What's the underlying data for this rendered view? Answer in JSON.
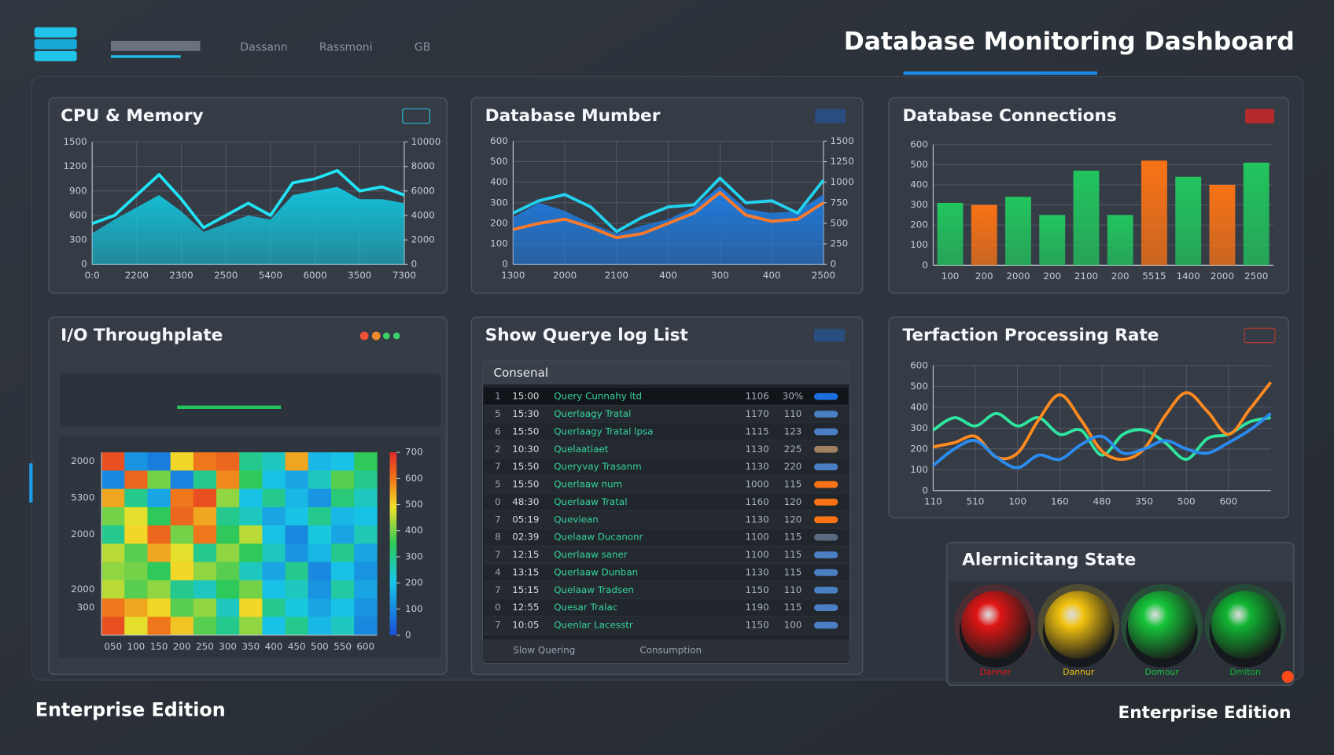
{
  "header": {
    "title": "Database Monitoring Dashboard",
    "nav": [
      "Dassann",
      "Rassmoni",
      "GB"
    ]
  },
  "footer": {
    "left": "Enterprise Edition",
    "right": "Enterprise Edition"
  },
  "chart_data": [
    {
      "type": "line",
      "title": "CPU & Memory",
      "grid": true,
      "categories": [
        "0:0",
        null,
        "2200",
        null,
        "2300",
        null,
        "2500",
        null,
        "5400",
        null,
        "6000",
        null,
        "3500",
        null,
        "7300"
      ],
      "series": [
        {
          "style": "area",
          "color": "#12c8e0",
          "values": [
            380,
            550,
            700,
            850,
            650,
            400,
            500,
            600,
            550,
            850,
            900,
            950,
            800,
            800,
            750
          ]
        },
        {
          "style": "line",
          "color": "#20e4f5",
          "values": [
            500,
            600,
            850,
            1100,
            800,
            450,
            600,
            750,
            600,
            1000,
            1050,
            1150,
            900,
            950,
            850
          ]
        }
      ],
      "ylim": [
        0,
        1500
      ],
      "yticks": [
        0,
        300,
        600,
        900,
        1200,
        1500
      ],
      "y2lim": [
        0,
        10000
      ],
      "y2ticks": [
        0,
        2000,
        4000,
        6000,
        8000,
        10000
      ]
    },
    {
      "type": "line",
      "title": "Database Mumber",
      "grid": true,
      "categories": [
        "1300",
        null,
        "2000",
        null,
        "2100",
        null,
        "400",
        null,
        "300",
        null,
        "400",
        null,
        "2500"
      ],
      "series": [
        {
          "style": "area",
          "color": "#1e7fe8",
          "values": [
            230,
            300,
            260,
            200,
            150,
            190,
            220,
            280,
            380,
            270,
            250,
            260,
            340
          ]
        },
        {
          "style": "line",
          "color": "#ff7a2a",
          "values": [
            170,
            200,
            220,
            180,
            130,
            150,
            200,
            250,
            350,
            240,
            210,
            220,
            300
          ]
        },
        {
          "style": "line",
          "color": "#22d3f0",
          "values": [
            250,
            310,
            340,
            280,
            160,
            230,
            280,
            290,
            420,
            300,
            310,
            250,
            410
          ]
        }
      ],
      "ylim": [
        0,
        600
      ],
      "yticks": [
        0,
        100,
        200,
        300,
        400,
        500,
        600
      ],
      "y2lim": [
        0,
        1500
      ],
      "y2ticks": [
        0,
        250,
        500,
        750,
        1000,
        1250,
        1500
      ]
    },
    {
      "type": "bar",
      "title": "Database Connections",
      "grid": true,
      "categories": [
        "100",
        "200",
        "2000",
        "200",
        "2100",
        "200",
        "5515",
        "1400",
        "2000",
        "2500"
      ],
      "values": [
        310,
        300,
        340,
        250,
        470,
        250,
        520,
        440,
        400,
        510
      ],
      "colors": [
        "#22c55e",
        "#f97316",
        "#22c55e",
        "#22c55e",
        "#22c55e",
        "#22c55e",
        "#f97316",
        "#22c55e",
        "#f97316",
        "#22c55e"
      ],
      "ylim": [
        0,
        600
      ],
      "yticks": [
        0,
        100,
        200,
        300,
        400,
        500,
        600
      ]
    },
    {
      "type": "heatmap",
      "title": "I/O Throughplate",
      "x": [
        "050",
        "100",
        "150",
        "200",
        "250",
        "300",
        "350",
        "400",
        "450",
        "500",
        "550",
        "600"
      ],
      "y": [
        "2000",
        null,
        "5300",
        null,
        "2000",
        null,
        null,
        "2000",
        "300",
        null
      ],
      "values": [
        [
          650,
          120,
          80,
          500,
          600,
          620,
          300,
          250,
          550,
          180,
          200,
          350
        ],
        [
          100,
          620,
          400,
          90,
          300,
          580,
          350,
          200,
          150,
          250,
          380,
          300
        ],
        [
          550,
          300,
          150,
          600,
          650,
          420,
          200,
          300,
          180,
          120,
          320,
          250
        ],
        [
          400,
          480,
          350,
          620,
          550,
          300,
          250,
          150,
          200,
          300,
          180,
          200
        ],
        [
          300,
          500,
          620,
          400,
          600,
          350,
          450,
          200,
          100,
          220,
          150,
          260
        ],
        [
          450,
          380,
          550,
          480,
          300,
          420,
          350,
          250,
          120,
          180,
          300,
          150
        ],
        [
          420,
          400,
          350,
          500,
          420,
          380,
          250,
          150,
          300,
          100,
          200,
          120
        ],
        [
          450,
          380,
          420,
          300,
          250,
          350,
          400,
          200,
          250,
          120,
          280,
          150
        ],
        [
          600,
          550,
          500,
          380,
          420,
          250,
          500,
          300,
          220,
          150,
          200,
          120
        ],
        [
          650,
          480,
          600,
          520,
          380,
          300,
          420,
          200,
          300,
          180,
          250,
          100
        ]
      ],
      "zlim": [
        0,
        700
      ],
      "zticks": [
        0,
        100,
        200,
        300,
        400,
        500,
        600,
        700
      ]
    },
    {
      "type": "line",
      "title": "Terfaction Processing Rate",
      "grid": true,
      "smooth": true,
      "categories": [
        "110",
        null,
        "510",
        null,
        "100",
        null,
        "160",
        null,
        "480",
        null,
        "350",
        null,
        "500",
        null,
        "600",
        null,
        null
      ],
      "series": [
        {
          "style": "line",
          "color": "#2ee6a0",
          "values": [
            290,
            350,
            310,
            370,
            310,
            350,
            270,
            290,
            170,
            270,
            290,
            230,
            150,
            250,
            270,
            330,
            350
          ]
        },
        {
          "style": "line",
          "color": "#ff8a1f",
          "values": [
            210,
            230,
            260,
            160,
            180,
            340,
            460,
            340,
            190,
            150,
            200,
            360,
            470,
            380,
            270,
            390,
            520
          ]
        },
        {
          "style": "line",
          "color": "#2a8cf0",
          "values": [
            120,
            200,
            240,
            160,
            110,
            170,
            150,
            220,
            260,
            180,
            200,
            240,
            200,
            180,
            230,
            290,
            370
          ]
        }
      ],
      "ylim": [
        0,
        600
      ],
      "yticks": [
        0,
        100,
        200,
        300,
        400,
        500,
        600
      ]
    }
  ],
  "query_log": {
    "title": "Show Querye log List",
    "header": "Consenal",
    "footer": [
      "Slow Quering",
      "Consumption"
    ],
    "rows": [
      [
        "1",
        "15:00",
        "Query Cunnahy ltd",
        "1106",
        "30%",
        "#1d6fe0"
      ],
      [
        "5",
        "15:30",
        "Querlaagy Tratal",
        "1170",
        "110",
        "#4b7fc4"
      ],
      [
        "6",
        "15:50",
        "Querlaagy Tratal lpsa",
        "1115",
        "123",
        "#4b7fc4"
      ],
      [
        "2",
        "10:30",
        "Quelaatiaet",
        "1130",
        "225",
        "#a08060"
      ],
      [
        "7",
        "15:50",
        "Queryvay Trasanm",
        "1130",
        "220",
        "#4b7fc4"
      ],
      [
        "5",
        "15:50",
        "Querlaaw num",
        "1000",
        "115",
        "#f97316"
      ],
      [
        "0",
        "48:30",
        "Querlaaw Tratal",
        "1160",
        "120",
        "#f97316"
      ],
      [
        "7",
        "05:19",
        "Quevlean",
        "1130",
        "120",
        "#f97316"
      ],
      [
        "8",
        "02:39",
        "Quelaaw Ducanonr",
        "1100",
        "115",
        "#5a6a80"
      ],
      [
        "7",
        "12:15",
        "Querlaaw saner",
        "1100",
        "115",
        "#4b7fc4"
      ],
      [
        "4",
        "13:15",
        "Querlaaw Dunban",
        "1130",
        "115",
        "#4b7fc4"
      ],
      [
        "7",
        "15:15",
        "Quelaaw Tradsen",
        "1150",
        "110",
        "#4b7fc4"
      ],
      [
        "0",
        "12:55",
        "Quesar Tralac",
        "1190",
        "115",
        "#4b7fc4"
      ],
      [
        "7",
        "10:05",
        "Quenlar Lacesstr",
        "1150",
        "100",
        "#4b7fc4"
      ]
    ]
  },
  "alerts": {
    "title": "Alernicitang State",
    "lights": [
      {
        "label": "Danner",
        "color": "#e01515"
      },
      {
        "label": "Dannur",
        "color": "#f2c20f"
      },
      {
        "label": "Domour",
        "color": "#16c53a"
      },
      {
        "label": "Dmlton",
        "color": "#10b532"
      }
    ]
  }
}
